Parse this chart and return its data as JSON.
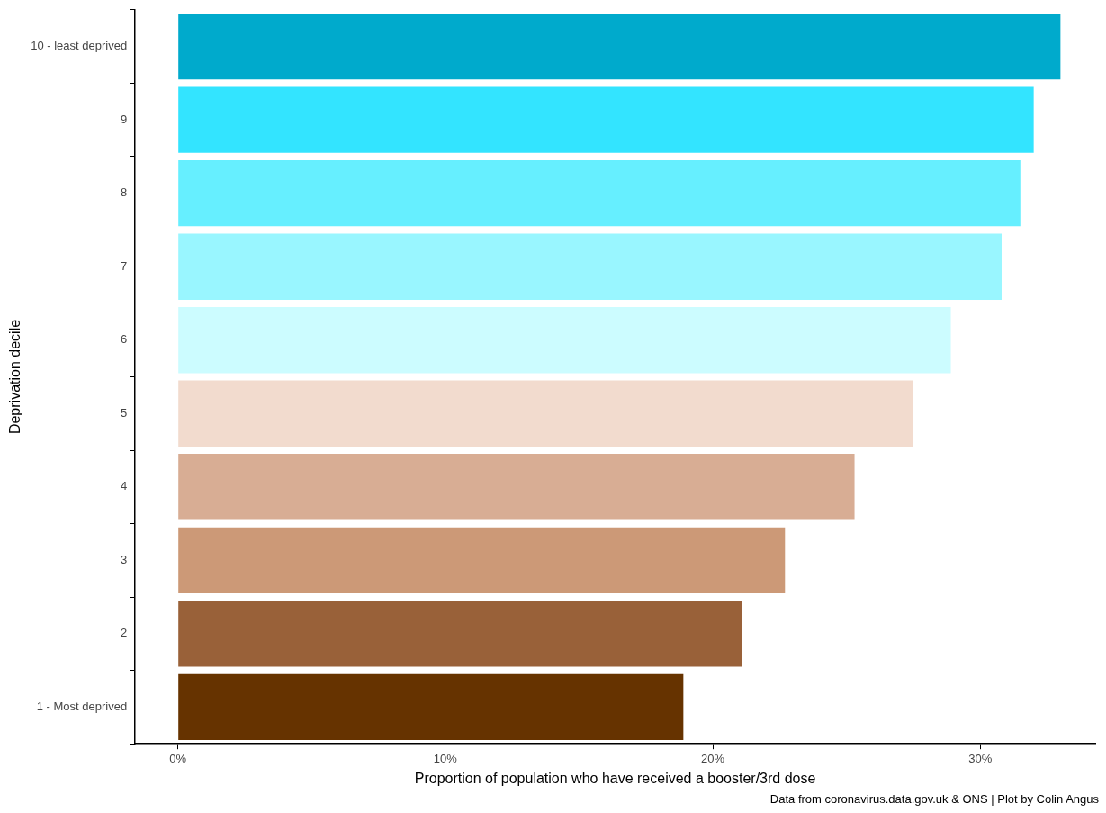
{
  "chart_data": {
    "type": "bar",
    "orientation": "horizontal",
    "xlabel": "Proportion of population who have received a booster/3rd dose",
    "ylabel": "Deprivation decile",
    "categories": [
      "10 - least deprived",
      "9",
      "8",
      "7",
      "6",
      "5",
      "4",
      "3",
      "2",
      "1 - Most deprived"
    ],
    "values": [
      33.0,
      32.0,
      31.5,
      30.8,
      28.9,
      27.5,
      25.3,
      22.7,
      21.1,
      18.9
    ],
    "colors": [
      "#00aacc",
      "#33e4ff",
      "#66efff",
      "#99f6ff",
      "#ccfcff",
      "#f2dbce",
      "#d8ad94",
      "#cc9977",
      "#996139",
      "#663300"
    ],
    "xlim": [
      -1.6,
      34.3
    ],
    "xticks": [
      {
        "value": 0,
        "label": "0%"
      },
      {
        "value": 10,
        "label": "10%"
      },
      {
        "value": 20,
        "label": "20%"
      },
      {
        "value": 30,
        "label": "30%"
      }
    ],
    "grid": false,
    "legend": false,
    "annotations": [
      "Data from coronavirus.data.gov.uk & ONS | Plot by Colin Angus"
    ]
  }
}
